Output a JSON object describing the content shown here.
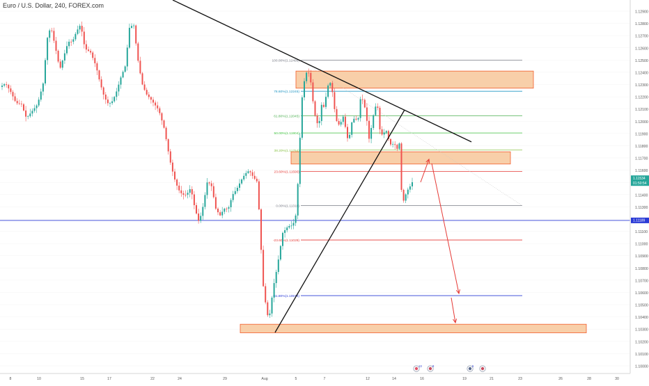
{
  "chart_data": {
    "type": "candlestick",
    "title": "Euro / U.S. Dollar, 240, FOREX.com",
    "colors": {
      "up": "#26a69a",
      "down": "#ef5350",
      "trendline": "#111111",
      "zone_fill": "#f8cfa9",
      "zone_border": "#f25c2a",
      "horizontal_line": "#2b3bd6",
      "projection_arrow": "#e53935"
    },
    "x_tick_labels": [
      "8",
      "10",
      "15",
      "17",
      "22",
      "24",
      "29",
      "Aug",
      "5",
      "7",
      "12",
      "14",
      "16",
      "19",
      "21",
      "23",
      "26",
      "28",
      "30"
    ],
    "ylim": [
      1.0995,
      1.1298
    ],
    "y_tick_labels": [
      "1.12900",
      "1.12800",
      "1.12700",
      "1.12600",
      "1.12500",
      "1.12400",
      "1.12300",
      "1.12200",
      "1.12100",
      "1.12000",
      "1.11900",
      "1.11800",
      "1.11700",
      "1.11600",
      "1.11500",
      "1.11400",
      "1.11300",
      "1.11200",
      "1.11100",
      "1.11000",
      "1.10900",
      "1.10800",
      "1.10700",
      "1.10600",
      "1.10500",
      "1.10400",
      "1.10300",
      "1.10200",
      "1.10100",
      "1.10000"
    ],
    "y_tick_values": [
      1.129,
      1.128,
      1.127,
      1.126,
      1.125,
      1.124,
      1.123,
      1.122,
      1.121,
      1.12,
      1.119,
      1.118,
      1.117,
      1.116,
      1.115,
      1.114,
      1.113,
      1.112,
      1.111,
      1.11,
      1.109,
      1.108,
      1.107,
      1.106,
      1.105,
      1.104,
      1.103,
      1.102,
      1.101,
      1.1
    ],
    "price_tags": [
      {
        "label": "1.11534",
        "sub": "01:50:54",
        "value": 1.11534,
        "color": "#26a69a"
      },
      {
        "label": "1.11189",
        "value": 1.11189,
        "color": "#2b3bd6"
      }
    ],
    "horizontal_line": {
      "value": 1.11189
    },
    "fibonacci": [
      {
        "label": "100.00%(1.12499)",
        "value": 1.12499,
        "color": "#787b86"
      },
      {
        "label": "78.60%(1.12245)",
        "value": 1.12245,
        "color": "#2196c4"
      },
      {
        "label": "61.80%(1.12045)",
        "value": 1.12045,
        "color": "#4caf50"
      },
      {
        "label": "50.00%(1.11904)",
        "value": 1.11904,
        "color": "#43c743"
      },
      {
        "label": "38.20%(1.11764)",
        "value": 1.11764,
        "color": "#8bc34a"
      },
      {
        "label": "23.60%(1.11590)",
        "value": 1.1159,
        "color": "#e53935"
      },
      {
        "label": "0.00%(1.11310)",
        "value": 1.1131,
        "color": "#787b86"
      },
      {
        "label": "-23.60%(1.11029)",
        "value": 1.11029,
        "color": "#e53935"
      },
      {
        "label": "-61.80%(1.10574)",
        "value": 1.10574,
        "color": "#2b3bd6"
      }
    ],
    "supply_demand_zones": [
      {
        "name": "upper-zone",
        "from": 1.1241,
        "to": 1.1227
      },
      {
        "name": "middle-zone",
        "from": 1.1175,
        "to": 1.1165
      },
      {
        "name": "lower-zone",
        "from": 1.1034,
        "to": 1.1027
      }
    ],
    "events": [
      {
        "label": "13",
        "count": 13
      },
      {
        "label": "9",
        "count": 9
      },
      {
        "label": "5",
        "count": 5
      },
      {
        "label": "",
        "count": 0
      }
    ]
  }
}
